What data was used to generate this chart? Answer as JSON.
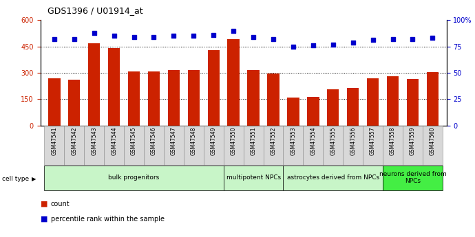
{
  "title": "GDS1396 / U01914_at",
  "samples": [
    "GSM47541",
    "GSM47542",
    "GSM47543",
    "GSM47544",
    "GSM47545",
    "GSM47546",
    "GSM47547",
    "GSM47548",
    "GSM47549",
    "GSM47550",
    "GSM47551",
    "GSM47552",
    "GSM47553",
    "GSM47554",
    "GSM47555",
    "GSM47556",
    "GSM47557",
    "GSM47558",
    "GSM47559",
    "GSM47560"
  ],
  "counts": [
    270,
    260,
    470,
    440,
    310,
    310,
    315,
    315,
    430,
    490,
    315,
    295,
    160,
    165,
    205,
    215,
    270,
    280,
    265,
    305
  ],
  "percentiles": [
    82,
    82,
    88,
    85,
    84,
    84,
    85,
    85,
    86,
    90,
    84,
    82,
    75,
    76,
    77,
    79,
    81,
    82,
    82,
    83
  ],
  "cell_type_groups": [
    {
      "label": "bulk progenitors",
      "start": 0,
      "end": 9,
      "color": "#c8f5c8"
    },
    {
      "label": "multipotent NPCs",
      "start": 9,
      "end": 12,
      "color": "#c8f5c8"
    },
    {
      "label": "astrocytes derived from NPCs",
      "start": 12,
      "end": 17,
      "color": "#c8f5c8"
    },
    {
      "label": "neurons derived from\nNPCs",
      "start": 17,
      "end": 20,
      "color": "#44ee44"
    }
  ],
  "ylim_left": [
    0,
    600
  ],
  "ylim_right": [
    0,
    100
  ],
  "yticks_left": [
    0,
    150,
    300,
    450,
    600
  ],
  "yticks_right": [
    0,
    25,
    50,
    75,
    100
  ],
  "bar_color": "#CC2200",
  "dot_color": "#0000CC",
  "axis_color_left": "#CC2200",
  "axis_color_right": "#0000CC",
  "grid_yticks": [
    150,
    300,
    450
  ]
}
